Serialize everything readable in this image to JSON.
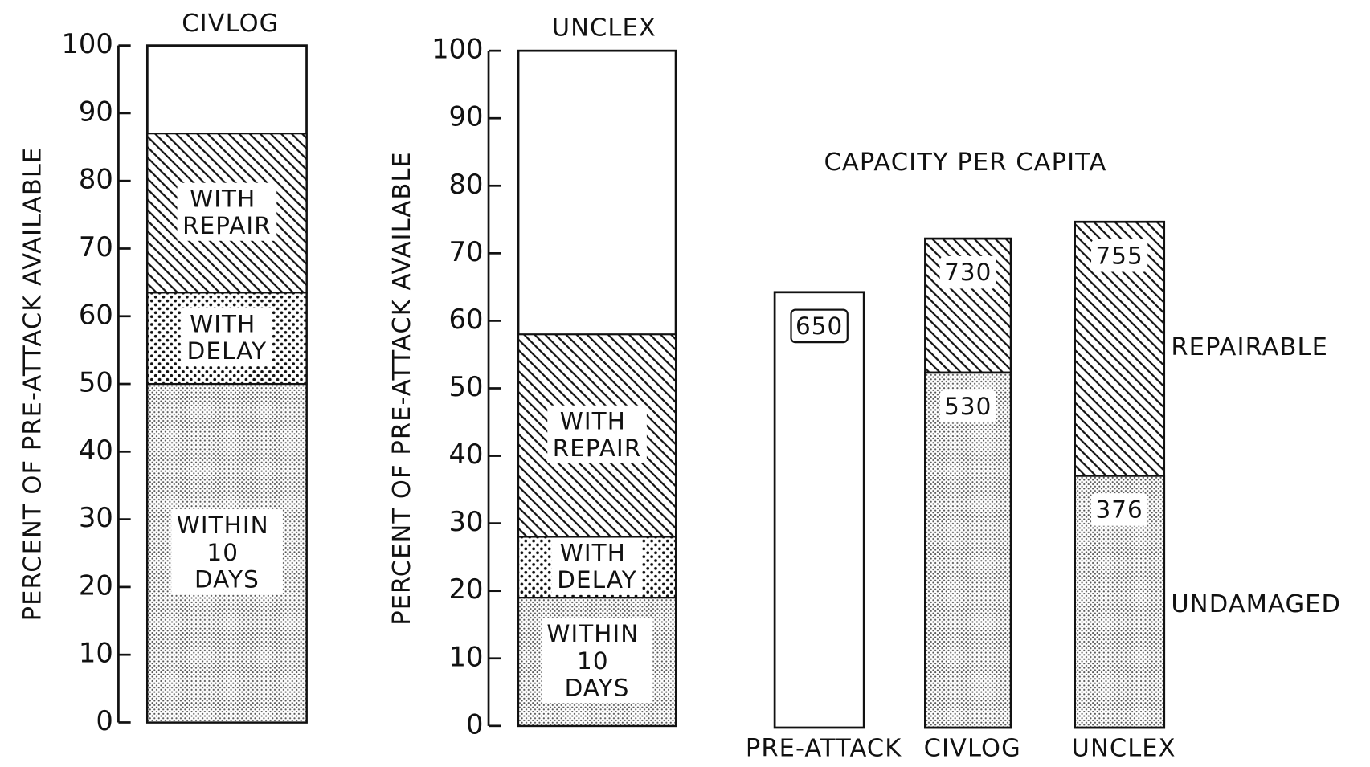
{
  "chart_data": [
    {
      "type": "stacked-bar",
      "title": "CIVLOG",
      "ylabel": "PERCENT OF PRE-ATTACK AVAILABLE",
      "ylim": [
        0,
        100
      ],
      "yticks": [
        0,
        10,
        20,
        30,
        40,
        50,
        60,
        70,
        80,
        90,
        100
      ],
      "series": [
        {
          "name": "WITHIN 10 DAYS",
          "pattern": "dots",
          "values": [
            50
          ]
        },
        {
          "name": "WITH DELAY",
          "pattern": "stipple",
          "values": [
            13.5
          ]
        },
        {
          "name": "WITH REPAIR",
          "pattern": "hatch",
          "values": [
            23.5
          ]
        }
      ]
    },
    {
      "type": "stacked-bar",
      "title": "UNCLEX",
      "ylabel": "PERCENT OF PRE-ATTACK AVAILABLE",
      "ylim": [
        0,
        100
      ],
      "yticks": [
        0,
        10,
        20,
        30,
        40,
        50,
        60,
        70,
        80,
        90,
        100
      ],
      "series": [
        {
          "name": "WITHIN 10 DAYS",
          "pattern": "dots",
          "values": [
            19
          ]
        },
        {
          "name": "WITH DELAY",
          "pattern": "stipple",
          "values": [
            9
          ]
        },
        {
          "name": "WITH REPAIR",
          "pattern": "hatch",
          "values": [
            30
          ]
        }
      ]
    },
    {
      "type": "overlap-bar",
      "title": "CAPACITY PER CAPITA",
      "categories": [
        "PRE-ATTACK",
        "CIVLOG",
        "UNCLEX"
      ],
      "series": [
        {
          "pattern": "none",
          "values": [
            650,
            null,
            null
          ]
        },
        {
          "name": "REPAIRABLE",
          "pattern": "hatch",
          "values": [
            null,
            730,
            755
          ]
        },
        {
          "name": "UNDAMAGED",
          "pattern": "dots",
          "values": [
            null,
            530,
            376
          ]
        }
      ]
    }
  ]
}
